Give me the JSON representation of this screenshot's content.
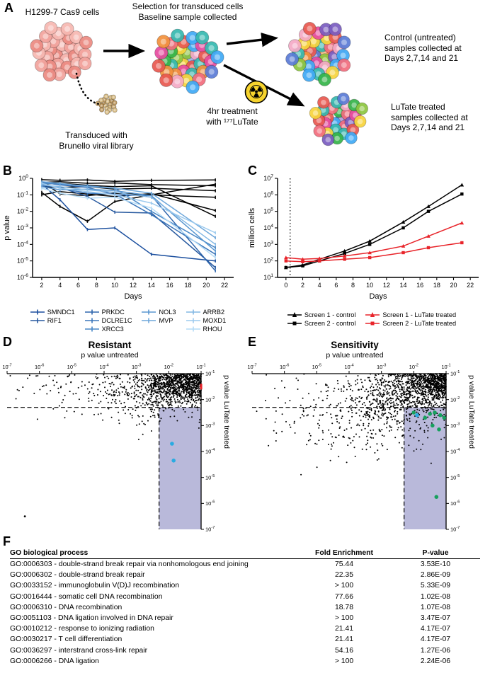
{
  "panel_letters": {
    "a": "A",
    "b": "B",
    "c": "C",
    "d": "D",
    "e": "E",
    "f": "F"
  },
  "panelA": {
    "cells_label": "H1299-7 Cas9 cells",
    "selection_line1": "Selection for transduced cells",
    "selection_line2": "Baseline sample collected",
    "transduced_line1": "Transduced with",
    "transduced_line2": "Brunello viral library",
    "treatment_line1": "4hr treatment",
    "treatment_line2": "with ¹⁷⁷LuTate",
    "control_line1": "Control (untreated)",
    "control_line2": "samples collected at",
    "control_line3": "Days 2,7,14 and 21",
    "lutate_line1": "LuTate treated",
    "lutate_line2": "samples collected at",
    "lutate_line3": "Days 2,7,14 and 21",
    "radiation_symbol": "☢",
    "radiation_icon_color": "#f6d32d",
    "cluster_colors": {
      "pink": [
        "#f2a39c",
        "#eb8a81",
        "#f6b7b1"
      ],
      "library": [
        "#c9a469",
        "#ba9257",
        "#d6b87f"
      ],
      "multicolor": [
        "#e8584f",
        "#f2903c",
        "#f7d43c",
        "#8cc63f",
        "#35b44a",
        "#35b8b0",
        "#3fa9f5",
        "#7a5cc0",
        "#e64ba0",
        "#f4a9c6",
        "#5a7bd6",
        "#f26d7d"
      ]
    }
  },
  "chart_data": [
    {
      "id": "panelB",
      "type": "line",
      "xlabel": "Days",
      "ylabel": "p value",
      "x_ticks": [
        2,
        4,
        6,
        8,
        10,
        12,
        14,
        16,
        18,
        20,
        22
      ],
      "x_range": [
        1,
        23
      ],
      "y_exponent_ticks": [
        0,
        -1,
        -2,
        -3,
        -4,
        -5,
        -6
      ],
      "x": [
        2,
        4,
        7,
        10,
        14,
        21
      ],
      "series": [
        {
          "name": "SMNDC1",
          "color": "#1b4f9e",
          "log10_values": [
            -0.35,
            -1.3,
            -3.1,
            -3.0,
            -4.6,
            -5.0
          ]
        },
        {
          "name": "RIF1",
          "color": "#27599f",
          "log10_values": [
            -0.45,
            -0.55,
            -1.1,
            -2.05,
            -2.1,
            -5.4
          ]
        },
        {
          "name": "PRKDC",
          "color": "#2f66ad",
          "log10_values": [
            -0.25,
            -0.4,
            -0.55,
            -1.0,
            -1.05,
            -5.6
          ]
        },
        {
          "name": "DCLRE1C",
          "color": "#3b76ba",
          "log10_values": [
            -0.35,
            -0.6,
            -0.9,
            -0.95,
            -2.2,
            -4.6
          ]
        },
        {
          "name": "XRCC3",
          "color": "#4887c6",
          "log10_values": [
            -0.3,
            -0.35,
            -0.45,
            -0.6,
            -2.0,
            -4.2
          ]
        },
        {
          "name": "NOL3",
          "color": "#5a97d0",
          "log10_values": [
            -0.5,
            -0.7,
            -0.65,
            -0.75,
            -1.05,
            -4.4
          ]
        },
        {
          "name": "MVP",
          "color": "#6ea7da",
          "log10_values": [
            -0.2,
            -0.3,
            -0.5,
            -0.6,
            -0.9,
            -3.6
          ]
        },
        {
          "name": "ARRB2",
          "color": "#84b8e4",
          "log10_values": [
            -0.4,
            -0.5,
            -0.7,
            -0.85,
            -1.15,
            -4.0
          ]
        },
        {
          "name": "MOXD1",
          "color": "#9ccaee",
          "log10_values": [
            -0.3,
            -0.6,
            -0.8,
            -1.0,
            -1.5,
            -3.3
          ]
        },
        {
          "name": "RHOU",
          "color": "#b4dbf6",
          "log10_values": [
            -0.6,
            -0.9,
            -1.2,
            -1.15,
            -1.8,
            -4.8
          ]
        }
      ],
      "unlabeled_gene_series": {
        "color": "#000000",
        "log10_values": [
          [
            -0.08,
            -0.12,
            -0.1,
            -0.18,
            -0.12,
            -0.1
          ],
          [
            -0.25,
            -0.2,
            -0.3,
            -0.28,
            -0.38,
            -0.45
          ],
          [
            -0.5,
            -0.55,
            -0.5,
            -0.65,
            -0.6,
            -0.75
          ],
          [
            -0.85,
            -1.7,
            -2.6,
            -1.4,
            -1.0,
            -1.15
          ],
          [
            -0.18,
            -0.95,
            -1.05,
            -0.9,
            -1.0,
            -0.35
          ],
          [
            -1.0,
            -0.8,
            -0.95,
            -1.1,
            -0.92,
            -1.95
          ],
          [
            -0.35,
            -0.3,
            -0.42,
            -0.5,
            -0.45,
            -2.3
          ]
        ]
      },
      "legend_columns": [
        [
          "SMNDC1",
          "RIF1"
        ],
        [
          "PRKDC",
          "DCLRE1C",
          "XRCC3"
        ],
        [
          "NOL3",
          "MVP"
        ],
        [
          "ARRB2",
          "MOXD1",
          "RHOU"
        ]
      ]
    },
    {
      "id": "panelC",
      "type": "line",
      "xlabel": "Days",
      "ylabel": "million cells",
      "x_ticks": [
        0,
        2,
        4,
        6,
        8,
        10,
        12,
        14,
        16,
        18,
        20,
        22
      ],
      "x_range": [
        -1,
        23
      ],
      "y_exponent_ticks": [
        7,
        6,
        5,
        4,
        3,
        2,
        1
      ],
      "x": [
        0,
        2,
        4,
        7,
        10,
        14,
        17,
        21
      ],
      "dotted_line_x": 0.5,
      "series": [
        {
          "name": "Screen 1 - control",
          "color": "#000000",
          "marker": "triangle",
          "log10_values": [
            1.6,
            1.75,
            2.1,
            2.6,
            3.2,
            4.35,
            5.3,
            6.6
          ]
        },
        {
          "name": "Screen 2 - control",
          "color": "#000000",
          "marker": "square",
          "log10_values": [
            1.6,
            1.7,
            2.0,
            2.45,
            3.0,
            4.0,
            5.0,
            6.05
          ]
        },
        {
          "name": "Screen 1 - LuTate treated",
          "color": "#e8242a",
          "marker": "triangle",
          "log10_values": [
            2.2,
            2.1,
            2.15,
            2.3,
            2.5,
            2.9,
            3.5,
            4.3
          ]
        },
        {
          "name": "Screen 2 - LuTate treated",
          "color": "#e8242a",
          "marker": "square",
          "log10_values": [
            2.0,
            1.95,
            2.0,
            2.1,
            2.2,
            2.5,
            2.8,
            3.1
          ]
        }
      ],
      "legend_columns": [
        [
          "Screen 1 - control",
          "Screen 2 - control"
        ],
        [
          "Screen 1 - LuTate treated",
          "Screen 2 - LuTate treated"
        ]
      ]
    },
    {
      "id": "panelD",
      "type": "scatter",
      "title": "Resistant",
      "top_axis_label": "p value untreated",
      "right_axis_label": "p value LuTate treated",
      "x_exponent_ticks": [
        -7,
        -6,
        -5,
        -4,
        -3,
        -2,
        -1
      ],
      "y_exponent_ticks": [
        -1,
        -2,
        -3,
        -4,
        -5,
        -6,
        -7
      ],
      "significance_threshold_y_exp": -2.3,
      "highlight_region_x_exp": -2.3,
      "region_fill": "#b9b9da",
      "cloud_seed": 11,
      "cloud": [
        {
          "cx": -1.6,
          "cy": -1.4,
          "sx": 0.6,
          "sy": 0.35,
          "n": 850
        },
        {
          "cx": -2.4,
          "cy": -1.7,
          "sx": 0.85,
          "sy": 0.5,
          "n": 300
        },
        {
          "cx": -3.6,
          "cy": -1.9,
          "sx": 1.1,
          "sy": 0.6,
          "n": 130
        },
        {
          "cx": -4.5,
          "cy": -1.4,
          "sx": 1.3,
          "sy": 0.35,
          "n": 50
        }
      ],
      "outlier_points": [
        [
          -6.45,
          -6.5
        ]
      ],
      "hit_points": {
        "color": "#29abe2",
        "points": [
          [
            -1.9,
            -3.7
          ],
          [
            -1.85,
            -4.35
          ]
        ]
      },
      "right_axis_mark": {
        "color": "#e8242a",
        "y_exp": -1.5
      }
    },
    {
      "id": "panelE",
      "type": "scatter",
      "title": "Sensitivity",
      "top_axis_label": "p value untreated",
      "right_axis_label": "p value LuTate treated",
      "x_exponent_ticks": [
        -7,
        -6,
        -5,
        -4,
        -3,
        -2,
        -1
      ],
      "y_exponent_ticks": [
        -1,
        -2,
        -3,
        -4,
        -5,
        -6,
        -7
      ],
      "significance_threshold_y_exp": -2.3,
      "highlight_region_x_exp": -2.3,
      "region_fill": "#b9b9da",
      "cloud_seed": 23,
      "cloud": [
        {
          "cx": -1.4,
          "cy": -1.35,
          "sx": 0.6,
          "sy": 0.38,
          "n": 700
        },
        {
          "cx": -2.3,
          "cy": -1.9,
          "sx": 0.9,
          "sy": 0.6,
          "n": 550
        },
        {
          "cx": -3.7,
          "cy": -2.6,
          "sx": 1.2,
          "sy": 0.85,
          "n": 350
        }
      ],
      "outlier_points": [],
      "hit_points": {
        "color": "#17a05e",
        "points": [
          [
            -1.5,
            -2.55
          ],
          [
            -1.35,
            -2.5
          ],
          [
            -1.18,
            -2.6
          ],
          [
            -1.06,
            -2.7
          ],
          [
            -1.42,
            -3.0
          ],
          [
            -1.22,
            -3.15
          ],
          [
            -1.65,
            -2.7
          ],
          [
            -1.3,
            -5.75
          ],
          [
            -2.0,
            -2.5
          ]
        ]
      },
      "hit_points2": {
        "color": "#29abe2",
        "points": [
          [
            -1.9,
            -2.6
          ]
        ]
      },
      "right_axis_mark": null
    }
  ],
  "go_table": {
    "headers": [
      "GO biological process",
      "Fold Enrichment",
      "P-value"
    ],
    "rows": [
      [
        "GO:0006303 - double-strand break repair via nonhomologous end joining",
        "75.44",
        "3.53E-10"
      ],
      [
        "GO:0006302 - double-strand break repair",
        "22.35",
        "2.86E-09"
      ],
      [
        "GO:0033152 - immunoglobulin V(D)J recombination",
        "> 100",
        "5.33E-09"
      ],
      [
        "GO:0016444 - somatic cell DNA recombination",
        "77.66",
        "1.02E-08"
      ],
      [
        "GO:0006310 - DNA recombination",
        "18.78",
        "1.07E-08"
      ],
      [
        "GO:0051103 - DNA ligation involved in DNA repair",
        "> 100",
        "3.47E-07"
      ],
      [
        "GO:0010212 - response to ionizing radiation",
        "21.41",
        "4.17E-07"
      ],
      [
        "GO:0030217 - T cell differentiation",
        "21.41",
        "4.17E-07"
      ],
      [
        "GO:0036297 - interstrand cross-link repair",
        "54.16",
        "1.27E-06"
      ],
      [
        "GO:0006266 - DNA ligation",
        "> 100",
        "2.24E-06"
      ]
    ]
  }
}
